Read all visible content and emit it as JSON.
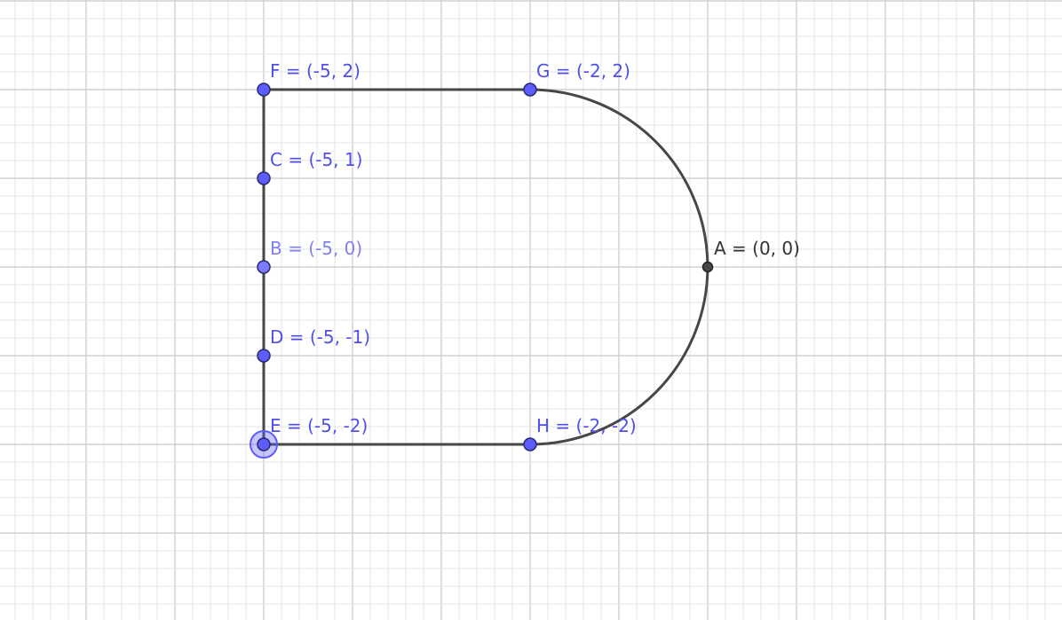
{
  "graph": {
    "colors": {
      "grid_minor": "#e6e6e6",
      "grid_major": "#c8c8c8",
      "shape_stroke": "#474747",
      "point_fill": "#5c5cff",
      "point_fill_light": "#7b7bff",
      "point_stroke": "#2b2b6b",
      "point_label": "#5050e6",
      "point_label_light": "#8080f0",
      "origin_fill": "#474747",
      "origin_label": "#333333",
      "selected_halo": "#5c5cff"
    },
    "shape": {
      "top_segment": [
        "F",
        "G"
      ],
      "left_segment": [
        "F",
        "E"
      ],
      "bottom_segment": [
        "E",
        "H"
      ],
      "arc": {
        "center": [
          -2,
          0
        ],
        "radius": 2,
        "from": "G",
        "through": "A",
        "to": "H"
      }
    },
    "points": [
      {
        "id": "F",
        "x": -5,
        "y": 2,
        "label": "F = (-5, 2)",
        "style": "normal"
      },
      {
        "id": "G",
        "x": -2,
        "y": 2,
        "label": "G = (-2, 2)",
        "style": "normal"
      },
      {
        "id": "C",
        "x": -5,
        "y": 1,
        "label": "C = (-5, 1)",
        "style": "normal"
      },
      {
        "id": "B",
        "x": -5,
        "y": 0,
        "label": "B = (-5, 0)",
        "style": "light"
      },
      {
        "id": "A",
        "x": 0,
        "y": 0,
        "label": "A = (0, 0)",
        "style": "origin"
      },
      {
        "id": "D",
        "x": -5,
        "y": -1,
        "label": "D = (-5, -1)",
        "style": "normal"
      },
      {
        "id": "E",
        "x": -5,
        "y": -2,
        "label": "E = (-5, -2)",
        "style": "selected"
      },
      {
        "id": "H",
        "x": -2,
        "y": -2,
        "label": "H = (-2, -2)",
        "style": "normal"
      }
    ]
  }
}
